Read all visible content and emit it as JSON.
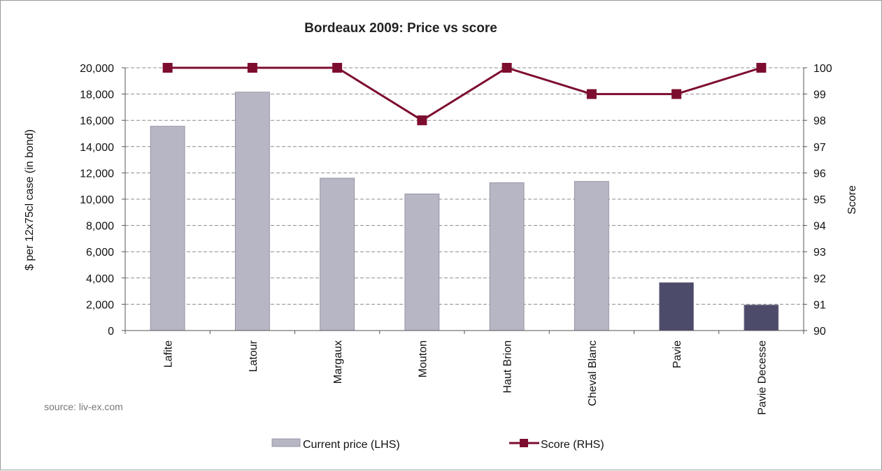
{
  "chart_data": {
    "type": "bar",
    "title": "Bordeaux 2009: Price vs score",
    "categories": [
      "Lafite",
      "Latour",
      "Margaux",
      "Mouton",
      "Haut Brion",
      "Cheval Blanc",
      "Pavie",
      "Pavie Decesse"
    ],
    "series": [
      {
        "name": "Current price (LHS)",
        "type": "bar",
        "axis": "left",
        "values": [
          15550,
          18150,
          11600,
          10400,
          11250,
          11350,
          3650,
          1950
        ],
        "colors": [
          "#b7b6c4",
          "#b7b6c4",
          "#b7b6c4",
          "#b7b6c4",
          "#b7b6c4",
          "#b7b6c4",
          "#4d4b6a",
          "#4d4b6a"
        ]
      },
      {
        "name": "Score (RHS)",
        "type": "line",
        "axis": "right",
        "values": [
          100,
          100,
          100,
          98,
          100,
          99,
          99,
          100
        ],
        "color": "#7d0d2f"
      }
    ],
    "y_left": {
      "label": "$ per 12x75cl case (in bond)",
      "range": [
        0,
        20000
      ],
      "ticks": [
        "0",
        "2,000",
        "4,000",
        "6,000",
        "8,000",
        "10,000",
        "12,000",
        "14,000",
        "16,000",
        "18,000",
        "20,000"
      ]
    },
    "y_right": {
      "label": "Score",
      "range": [
        90,
        100
      ],
      "ticks": [
        "90",
        "91",
        "92",
        "93",
        "94",
        "95",
        "96",
        "97",
        "98",
        "99",
        "100"
      ]
    },
    "grid": "horizontal dashed",
    "legend": "bottom",
    "source": "source: liv-ex.com"
  }
}
